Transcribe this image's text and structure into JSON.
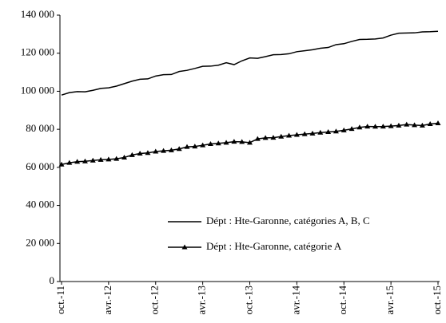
{
  "chart_data": {
    "type": "line",
    "categories": [
      "oct.-11",
      null,
      null,
      null,
      null,
      null,
      "avr.-12",
      null,
      null,
      null,
      null,
      null,
      "oct.-12",
      null,
      null,
      null,
      null,
      null,
      "avr.-13",
      null,
      null,
      null,
      null,
      null,
      "oct.-13",
      null,
      null,
      null,
      null,
      null,
      "avr.-14",
      null,
      null,
      null,
      null,
      null,
      "oct.-14",
      null,
      null,
      null,
      null,
      null,
      "avr.-15",
      null,
      null,
      null,
      null,
      null,
      "oct.-15"
    ],
    "series": [
      {
        "name": "Dépt : Hte-Garonne, catégories A, B, C",
        "color": "#000000",
        "values": [
          98000,
          99300,
          99800,
          99700,
          100500,
          101500,
          101800,
          102700,
          104000,
          105300,
          106300,
          106500,
          108000,
          108700,
          108800,
          110400,
          111000,
          112000,
          113100,
          113200,
          113700,
          115000,
          114000,
          116000,
          117500,
          117300,
          118200,
          119200,
          119300,
          119700,
          120800,
          121300,
          121800,
          122600,
          123000,
          124500,
          125000,
          126200,
          127200,
          127300,
          127500,
          128000,
          129500,
          130500,
          130600,
          130700,
          131200,
          131300,
          131500
        ]
      },
      {
        "name": "Dépt : Hte-Garonne, catégorie A",
        "color": "#000000",
        "marker": "triangle",
        "values": [
          61500,
          62400,
          63000,
          63200,
          63600,
          64000,
          64200,
          64500,
          65200,
          66500,
          67300,
          67600,
          68300,
          68700,
          69000,
          69700,
          70800,
          71000,
          71600,
          72300,
          72600,
          73000,
          73500,
          73400,
          73000,
          75000,
          75500,
          75600,
          76200,
          76700,
          77100,
          77500,
          77800,
          78300,
          78600,
          78900,
          79500,
          80200,
          81000,
          81500,
          81400,
          81500,
          81700,
          82000,
          82500,
          82200,
          82000,
          82800,
          83200
        ]
      }
    ],
    "ylim": [
      0,
      140000
    ],
    "yticks": [
      0,
      {
        "value": 20000,
        "label": "20 000"
      },
      {
        "value": 40000,
        "label": "40 000"
      },
      {
        "value": 60000,
        "label": "60 000"
      },
      {
        "value": 80000,
        "label": "80 000"
      },
      {
        "value": 100000,
        "label": "100 000"
      },
      {
        "value": 120000,
        "label": "120 000"
      },
      {
        "value": 140000,
        "label": "140 000"
      }
    ],
    "grid": false,
    "legend": "lower center"
  }
}
